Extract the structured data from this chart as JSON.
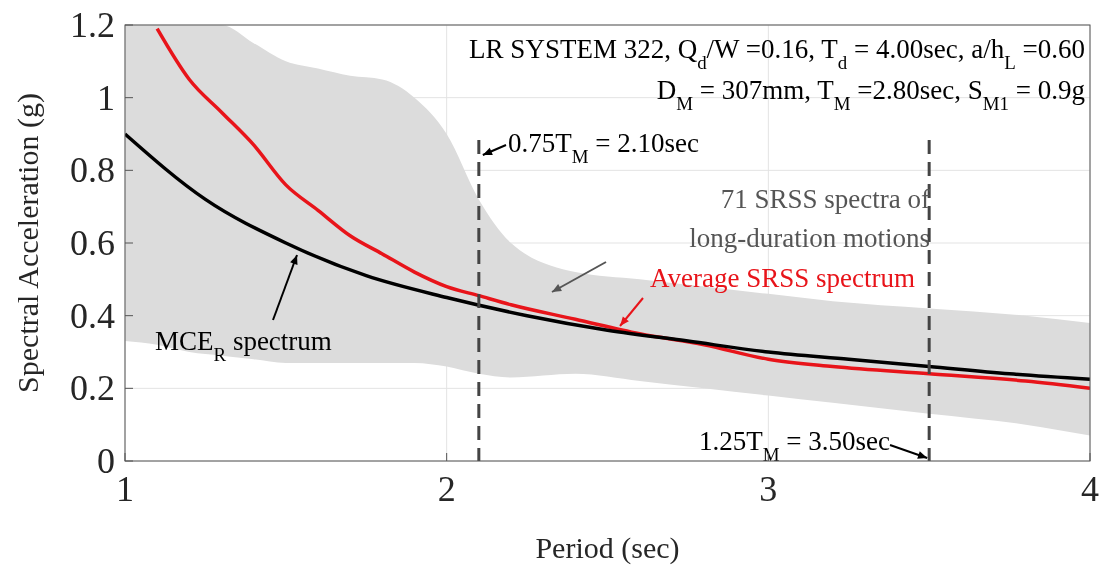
{
  "chart_data": {
    "type": "line",
    "xlabel": "Period (sec)",
    "ylabel": "Spectral Acceleration (g)",
    "xlim": [
      1,
      4
    ],
    "xticks": [
      1,
      2,
      3,
      4
    ],
    "ylim": [
      0,
      1.2
    ],
    "yticks": [
      0,
      0.2,
      0.4,
      0.6,
      0.8,
      1,
      1.2
    ],
    "grid": true,
    "series": [
      {
        "name": "MCE$_{R}$ spectrum",
        "color": "#000000",
        "x": [
          1,
          1.25,
          1.5,
          1.75,
          2,
          2.25,
          2.5,
          2.75,
          3,
          3.25,
          3.5,
          3.75,
          4
        ],
        "values": [
          0.9,
          0.72,
          0.6,
          0.51,
          0.45,
          0.4,
          0.36,
          0.33,
          0.3,
          0.28,
          0.26,
          0.24,
          0.225
        ]
      },
      {
        "name": "Average SRSS spectrum",
        "color": "#e8141a",
        "x": [
          1.0,
          1.1,
          1.2,
          1.3,
          1.4,
          1.5,
          1.6,
          1.7,
          1.8,
          1.9,
          2.0,
          2.1,
          2.2,
          2.4,
          2.6,
          2.8,
          3.0,
          3.2,
          3.5,
          3.8,
          4.0
        ],
        "values": [
          null,
          1.19,
          1.05,
          0.96,
          0.87,
          0.76,
          0.69,
          0.62,
          0.57,
          0.52,
          0.48,
          0.455,
          0.43,
          0.39,
          0.35,
          0.32,
          0.28,
          0.26,
          0.24,
          0.22,
          0.2
        ],
        "lower": [
          0.33,
          0.32,
          0.3,
          0.29,
          0.28,
          0.27,
          0.27,
          0.27,
          0.27,
          0.27,
          0.26,
          0.24,
          0.23,
          0.24,
          0.22,
          0.2,
          0.18,
          0.16,
          0.13,
          0.1,
          0.07
        ],
        "upper": [
          1.2,
          1.2,
          1.2,
          1.2,
          1.15,
          1.1,
          1.08,
          1.06,
          1.05,
          1.0,
          0.9,
          0.72,
          0.6,
          0.52,
          0.5,
          0.48,
          0.46,
          0.44,
          0.42,
          0.4,
          0.38
        ]
      }
    ],
    "ref_lines": [
      {
        "axis": "x",
        "value": 2.1,
        "label": "0.75T$_{M}$ = 2.10sec",
        "color": "#444444",
        "line_style": "dashed"
      },
      {
        "axis": "x",
        "value": 3.5,
        "label": "1.25T$_{M}$ = 3.50sec",
        "color": "#444444",
        "line_style": "dashed"
      }
    ],
    "annotations": [
      "LR SYSTEM 322, Q$_{d}$/W =0.16, T$_{d}$ = 4.00sec, a/h$_{L}$ =0.60",
      "D$_{M}$ = 307mm, T$_{M}$ =2.80sec, S$_{M1}$ = 0.9g",
      "71 SRSS spectra of",
      "long-duration motions"
    ]
  }
}
